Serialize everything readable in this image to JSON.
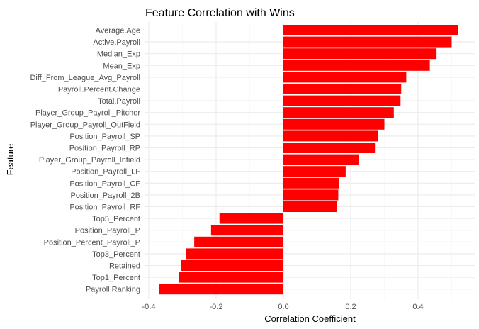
{
  "chart_data": {
    "type": "bar",
    "orientation": "horizontal",
    "title": "Feature Correlation with Wins",
    "xlabel": "Correlation Coefficient",
    "ylabel": "Feature",
    "xlim": [
      -0.4,
      0.52
    ],
    "xticks": [
      -0.4,
      -0.2,
      0.0,
      0.2,
      0.4
    ],
    "xtick_labels": [
      "-0.4",
      "-0.2",
      "0.0",
      "0.2",
      "0.4"
    ],
    "grid": true,
    "bar_color": "#ff0000",
    "background": "#ffffff",
    "grid_color": "#ebebeb",
    "categories": [
      "Average.Age",
      "Active.Payroll",
      "Median_Exp",
      "Mean_Exp",
      "Diff_From_League_Avg_Payroll",
      "Payroll.Percent.Change",
      "Total.Payroll",
      "Player_Group_Payroll_Pitcher",
      "Player_Group_Payroll_OutField",
      "Position_Payroll_SP",
      "Position_Payroll_RP",
      "Player_Group_Payroll_Infield",
      "Position_Payroll_LF",
      "Position_Payroll_CF",
      "Position_Payroll_2B",
      "Position_Payroll_RF",
      "Top5_Percent",
      "Position_Payroll_P",
      "Position_Percent_Payroll_P",
      "Top3_Percent",
      "Retained",
      "Top1_Percent",
      "Payroll.Ranking"
    ],
    "values": [
      0.52,
      0.5,
      0.455,
      0.435,
      0.365,
      0.35,
      0.348,
      0.328,
      0.3,
      0.28,
      0.272,
      0.225,
      0.185,
      0.165,
      0.163,
      0.158,
      -0.19,
      -0.215,
      -0.265,
      -0.29,
      -0.305,
      -0.31,
      -0.37
    ]
  }
}
